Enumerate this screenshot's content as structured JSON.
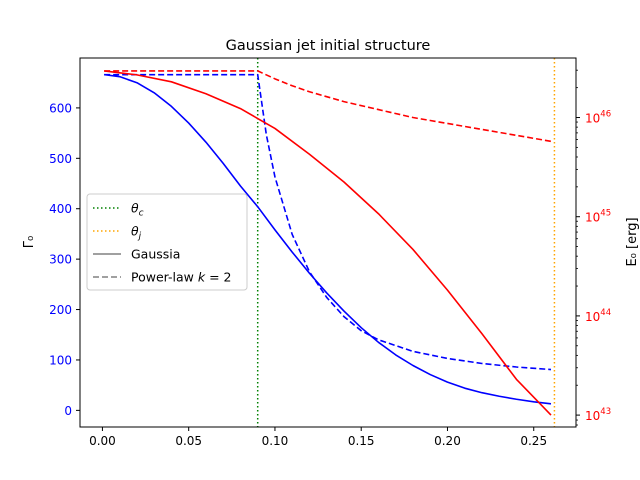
{
  "chart_data": {
    "type": "line",
    "title": "Gaussian jet initial structure",
    "xlabel": "",
    "ylabel": "Γ₀",
    "y2label": "E₀ [erg]",
    "xlim": [
      -0.013,
      0.2745
    ],
    "ylim": [
      -33,
      699
    ],
    "y2lim_log10": [
      42.88,
      46.6
    ],
    "x_ticks": [
      0.0,
      0.05,
      0.1,
      0.15,
      0.2,
      0.25
    ],
    "x_tick_labels": [
      "0.00",
      "0.05",
      "0.10",
      "0.15",
      "0.20",
      "0.25"
    ],
    "y_ticks": [
      0,
      100,
      200,
      300,
      400,
      500,
      600
    ],
    "y_tick_labels": [
      "0",
      "100",
      "200",
      "300",
      "400",
      "500",
      "600"
    ],
    "y2_ticks_log10": [
      43,
      44,
      45,
      46
    ],
    "y2_tick_labels": [
      [
        "10",
        "43"
      ],
      [
        "10",
        "44"
      ],
      [
        "10",
        "45"
      ],
      [
        "10",
        "46"
      ]
    ],
    "theta_c": 0.09,
    "theta_j": 0.262,
    "colors": {
      "gamma": "#0000ff",
      "energy": "#ff0000",
      "theta_c": "#008000",
      "theta_j": "#ffa500",
      "legend_line": "#808080"
    },
    "series": [
      {
        "quantity": "Γ₀",
        "style": "solid",
        "color": "#0000ff",
        "x": [
          0.001,
          0.01,
          0.02,
          0.03,
          0.04,
          0.05,
          0.06,
          0.07,
          0.08,
          0.09,
          0.1,
          0.11,
          0.12,
          0.13,
          0.14,
          0.15,
          0.16,
          0.17,
          0.18,
          0.19,
          0.2,
          0.21,
          0.22,
          0.23,
          0.24,
          0.25,
          0.26
        ],
        "y": [
          666,
          662,
          650,
          630,
          603,
          570,
          532,
          490,
          445,
          404,
          358,
          314,
          272,
          233,
          197,
          164,
          135,
          110,
          89,
          71,
          56,
          44,
          35,
          28,
          22,
          17,
          13
        ]
      },
      {
        "quantity": "Γ₀",
        "style": "dashed",
        "color": "#0000ff",
        "x": [
          0.001,
          0.09,
          0.095,
          0.1,
          0.11,
          0.12,
          0.13,
          0.14,
          0.15,
          0.16,
          0.18,
          0.2,
          0.22,
          0.24,
          0.26
        ],
        "y": [
          666,
          666,
          547,
          463,
          349,
          275,
          224,
          186,
          158,
          140,
          117,
          103,
          93,
          86,
          81
        ]
      },
      {
        "quantity": "E₀ [erg]",
        "style": "solid",
        "color": "#ff0000",
        "x": [
          0.001,
          0.02,
          0.04,
          0.06,
          0.08,
          0.09,
          0.1,
          0.12,
          0.14,
          0.16,
          0.18,
          0.2,
          0.22,
          0.24,
          0.25,
          0.26
        ],
        "y_log10": [
          46.47,
          46.43,
          46.36,
          46.24,
          46.09,
          45.99,
          45.89,
          45.63,
          45.35,
          45.03,
          44.67,
          44.26,
          43.82,
          43.36,
          43.18,
          43.0
        ]
      },
      {
        "quantity": "E₀ [erg]",
        "style": "dashed",
        "color": "#ff0000",
        "x": [
          0.001,
          0.09,
          0.1,
          0.11,
          0.12,
          0.14,
          0.16,
          0.18,
          0.2,
          0.22,
          0.24,
          0.26
        ],
        "y_log10": [
          46.47,
          46.47,
          46.39,
          46.32,
          46.26,
          46.16,
          46.08,
          46.0,
          45.94,
          45.88,
          45.82,
          45.76
        ]
      }
    ],
    "legend": {
      "position": "center-left",
      "entries": [
        {
          "label": "θ_c",
          "base": "θ",
          "sub": "c",
          "color": "#008000",
          "style": "dotted"
        },
        {
          "label": "θ_j",
          "base": "θ",
          "sub": "j",
          "color": "#ffa500",
          "style": "dotted"
        },
        {
          "label": "Gaussia",
          "color": "#808080",
          "style": "solid"
        },
        {
          "label": "Power-law k = 2",
          "prefix": "Power-law ",
          "math": "k",
          "suffix": " = 2",
          "color": "#808080",
          "style": "dashed"
        }
      ]
    },
    "grid": false
  }
}
